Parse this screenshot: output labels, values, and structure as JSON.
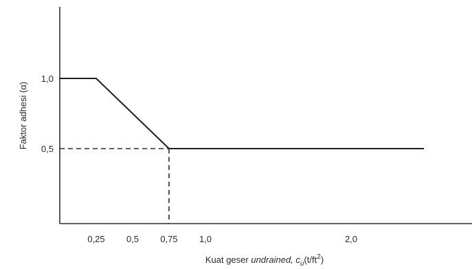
{
  "chart_data": {
    "type": "line",
    "xlabel_parts": {
      "prefix": "Kuat geser ",
      "italic": "undrained",
      "mid": ", c",
      "subscript": "u",
      "unit": "(t/ft",
      "superscript": "2",
      "close": ")"
    },
    "ylabel": "Faktor adhesi (α)",
    "x_ticks": [
      {
        "value": 0.25,
        "label": "0,25"
      },
      {
        "value": 0.5,
        "label": "0,5"
      },
      {
        "value": 0.75,
        "label": "0,75"
      },
      {
        "value": 1.0,
        "label": "1,0"
      },
      {
        "value": 2.0,
        "label": "2,0"
      }
    ],
    "y_ticks": [
      {
        "value": 0.5,
        "label": "0,5"
      },
      {
        "value": 1.0,
        "label": "1,0"
      }
    ],
    "xlim": [
      0,
      2.75
    ],
    "ylim": [
      0,
      1.5
    ],
    "series": [
      {
        "x": [
          0,
          0.25,
          0.75,
          2.5
        ],
        "y": [
          1.0,
          1.0,
          0.5,
          0.5
        ]
      }
    ],
    "guide_point": {
      "x": 0.75,
      "y": 0.5
    },
    "grid": false,
    "colors": {
      "line": "#1e1e1e",
      "axis": "#2e2e2e",
      "text": "#2a2a2a"
    }
  }
}
